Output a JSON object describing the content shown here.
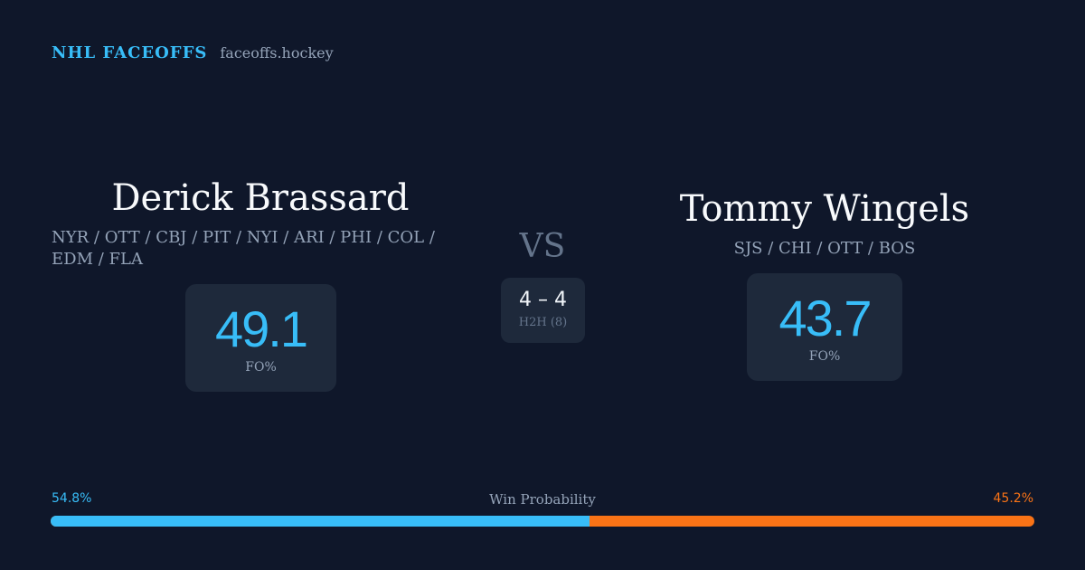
{
  "brand": {
    "name": "NHL FACEOFFS",
    "url": "faceoffs.hockey"
  },
  "player_left": {
    "name": "Derick Brassard",
    "teams": "NYR / OTT / CBJ / PIT / NYI / ARI / PHI / COL / EDM / FLA",
    "fo_pct": "49.1",
    "fo_label": "FO%"
  },
  "player_right": {
    "name": "Tommy Wingels",
    "teams": "SJS / CHI / OTT / BOS",
    "fo_pct": "43.7",
    "fo_label": "FO%"
  },
  "matchup": {
    "vs_label": "VS",
    "h2h_score": "4 – 4",
    "h2h_label": "H2H (8)"
  },
  "win_probability": {
    "title": "Win Probability",
    "left_label": "54.8%",
    "right_label": "45.2%",
    "left_value": 54.8,
    "right_value": 45.2
  },
  "colors": {
    "background": "#0f172a",
    "accent_blue": "#38bdf8",
    "accent_orange": "#f97316",
    "card": "#1e293b"
  }
}
